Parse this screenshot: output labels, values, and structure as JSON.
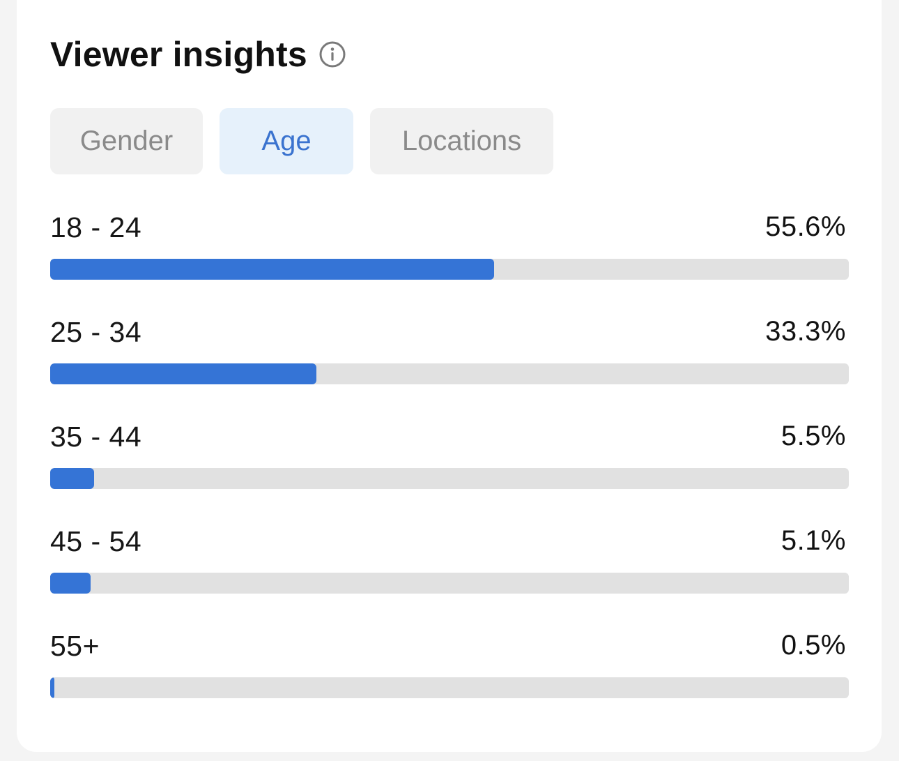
{
  "panel": {
    "title": "Viewer insights",
    "info_icon": "info-circle-icon"
  },
  "tabs": [
    {
      "label": "Gender",
      "active": false
    },
    {
      "label": "Age",
      "active": true
    },
    {
      "label": "Locations",
      "active": false
    }
  ],
  "age_breakdown": [
    {
      "label": "18 - 24",
      "value": "55.6%",
      "fraction": 0.556
    },
    {
      "label": "25 - 34",
      "value": "33.3%",
      "fraction": 0.333
    },
    {
      "label": "35 - 44",
      "value": "5.5%",
      "fraction": 0.055
    },
    {
      "label": "45 - 54",
      "value": "5.1%",
      "fraction": 0.051
    },
    {
      "label": "55+",
      "value": "0.5%",
      "fraction": 0.005
    }
  ],
  "colors": {
    "accent": "#3574d6",
    "active_tab_bg": "#e6f1fb",
    "active_tab_text": "#3a73cf",
    "track": "#e1e1e1"
  }
}
